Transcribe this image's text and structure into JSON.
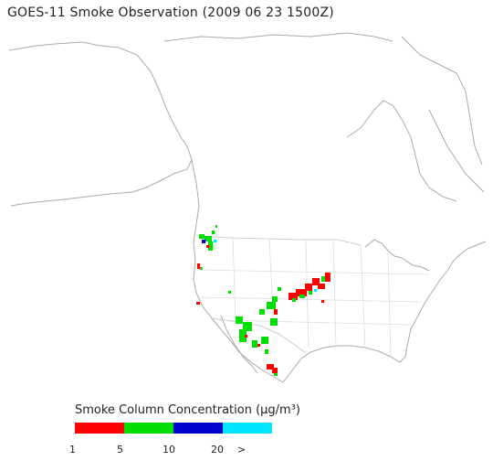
{
  "title": "GOES-11 Smoke Observation (2009 06 23  1500Z)",
  "legend": {
    "title": "Smoke Column Concentration (µg/m³)",
    "colors": [
      "#ff0000",
      "#00dd00",
      "#0000cc",
      "#00e5ff"
    ],
    "ticks": [
      "1",
      "5",
      "10",
      "20",
      ">"
    ]
  },
  "map": {
    "coastline_color": "#aaaaaa",
    "border_color": "#cccccc"
  }
}
